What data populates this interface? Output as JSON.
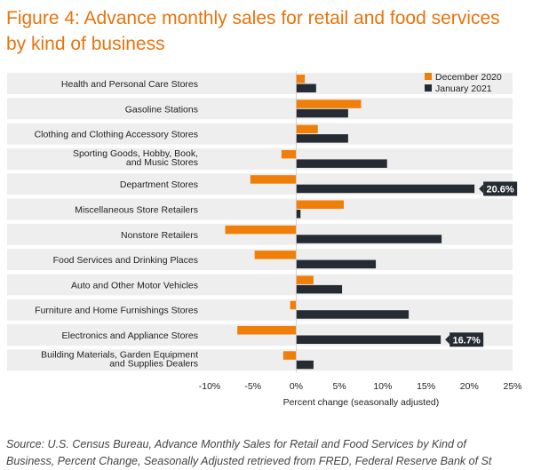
{
  "title": {
    "line1": "Figure 4: Advance monthly sales for retail and food services",
    "line2": "by kind of business"
  },
  "source": {
    "line1": "Source: U.S. Census Bureau, Advance Monthly Sales for Retail and Food Services by Kind of",
    "line2": "Business, Percent Change, Seasonally Adjusted retrieved from FRED, Federal Reserve Bank of St"
  },
  "colors": {
    "dec": "#f07f09",
    "jan": "#262b33",
    "band": "#eeeeee",
    "axis": "#888888",
    "title": "#e8730c"
  },
  "chart_data": {
    "type": "bar",
    "orientation": "horizontal",
    "categories": [
      [
        "Health and Personal Care Stores"
      ],
      [
        "Gasoline Stations"
      ],
      [
        "Clothing and Clothing Accessory Stores"
      ],
      [
        "Sporting Goods, Hobby, Book,",
        "and Music Stores"
      ],
      [
        "Department Stores"
      ],
      [
        "Miscellaneous Store Retailers"
      ],
      [
        "Nonstore Retailers"
      ],
      [
        "Food Services and Drinking Places"
      ],
      [
        "Auto and Other Motor Vehicles"
      ],
      [
        "Furniture and Home Furnishings Stores"
      ],
      [
        "Electronics and Appliance Stores"
      ],
      [
        "Building Materials, Garden Equipment",
        "and Supplies Dealers"
      ]
    ],
    "series": [
      {
        "name": "December 2020",
        "values": [
          1.0,
          7.5,
          2.5,
          -1.7,
          -5.3,
          5.5,
          -8.2,
          -4.8,
          2.0,
          -0.7,
          -6.8,
          -1.5
        ]
      },
      {
        "name": "January 2021",
        "values": [
          2.3,
          6.0,
          6.0,
          10.5,
          20.6,
          0.5,
          16.8,
          9.2,
          5.3,
          13.0,
          16.7,
          2.0
        ]
      }
    ],
    "callouts": [
      {
        "category_index": 4,
        "series": "January 2021",
        "text": "20.6%"
      },
      {
        "category_index": 10,
        "series": "January 2021",
        "text": "16.7%"
      }
    ],
    "xlim": [
      -10,
      25
    ],
    "xticks": [
      -10,
      -5,
      0,
      5,
      10,
      15,
      20,
      25
    ],
    "xtick_labels": [
      "-10%",
      "-5%",
      "0%",
      "5%",
      "10%",
      "15%",
      "20%",
      "25%"
    ],
    "xlabel": "Percent change (seasonally adjusted)",
    "ylabel": "",
    "legend_position": "top-right",
    "grid": false
  }
}
